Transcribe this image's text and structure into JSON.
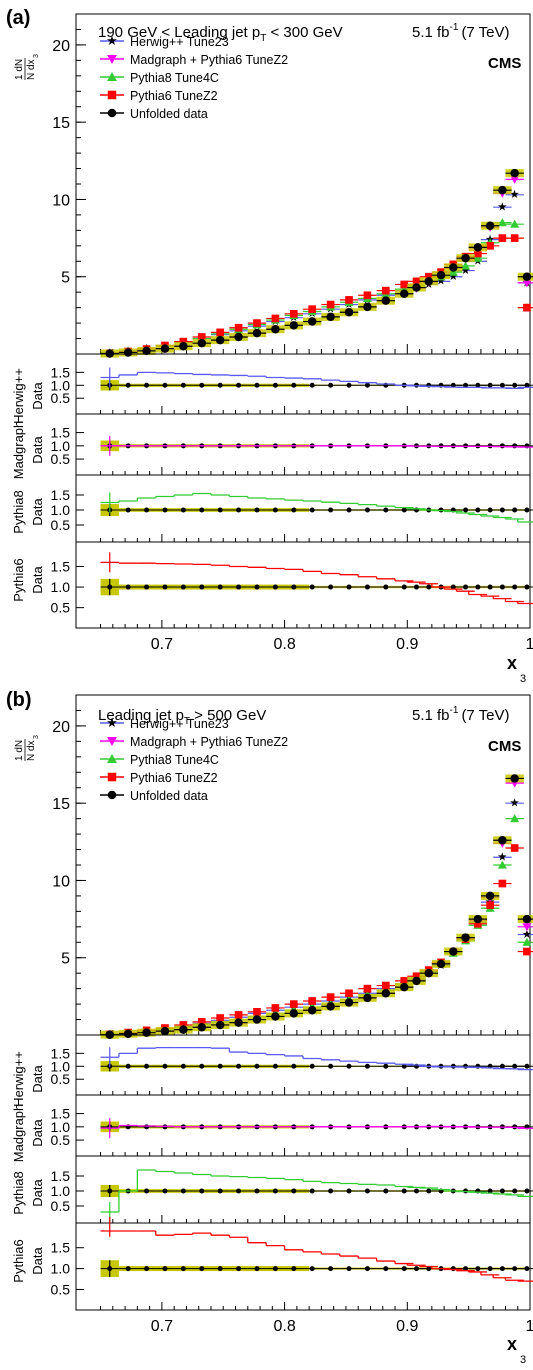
{
  "figure": {
    "x_axis_label": "x",
    "x_axis_sub": "3",
    "y_axis_label_num": "1 dN",
    "y_axis_label_den": "N dx",
    "y_axis_label_sub": "3",
    "lumi_text": "5.1 fb",
    "lumi_sup": "-1",
    "energy_text": "(7 TeV)",
    "experiment": "CMS",
    "ratio_denominator": "Data"
  },
  "legend": [
    {
      "name": "Herwig++ Tune23",
      "color": "#5a5af0",
      "marker": "star"
    },
    {
      "name": "Madgraph + Pythia6 TuneZ2",
      "color": "#ff00ff",
      "marker": "tri-down"
    },
    {
      "name": "Pythia8 Tune4C",
      "color": "#33cc33",
      "marker": "tri-up"
    },
    {
      "name": "Pythia6 TuneZ2",
      "color": "#ff0000",
      "marker": "square"
    },
    {
      "name": "Unfolded data",
      "color": "#000000",
      "marker": "circle"
    }
  ],
  "ratio_labels": [
    "Herwig++",
    "Madgraph",
    "Pythia8",
    "Pythia6"
  ],
  "uncertainty_band_color": "#c8c800",
  "chart_data": [
    {
      "type": "line",
      "panel_label": "(a)",
      "title": "190 GeV < Leading jet p",
      "title_sub": "T",
      "title_tail": " < 300 GeV",
      "xlabel": "x3",
      "ylabel": "1/N dN/dx3",
      "xlim": [
        0.63,
        1.0
      ],
      "ylim": [
        0,
        22
      ],
      "y_ticks": [
        "5",
        "10",
        "15",
        "20"
      ],
      "x_ticks": [
        "0.7",
        "0.8",
        "0.9",
        "1"
      ],
      "x": [
        0.6575,
        0.6725,
        0.6875,
        0.7025,
        0.7175,
        0.7325,
        0.7475,
        0.7625,
        0.7775,
        0.7925,
        0.8075,
        0.8225,
        0.8375,
        0.8525,
        0.8675,
        0.8825,
        0.8975,
        0.9075,
        0.9175,
        0.9275,
        0.9375,
        0.9475,
        0.9575,
        0.9675,
        0.9775,
        0.9875,
        0.9975
      ],
      "series": [
        {
          "name": "Unfolded data",
          "values": [
            0.03,
            0.1,
            0.2,
            0.35,
            0.5,
            0.7,
            0.9,
            1.1,
            1.35,
            1.6,
            1.85,
            2.1,
            2.4,
            2.7,
            3.05,
            3.45,
            3.9,
            4.3,
            4.7,
            5.1,
            5.6,
            6.2,
            6.9,
            8.3,
            10.6,
            11.7,
            5.0
          ]
        },
        {
          "name": "Herwig++ Tune23",
          "values": [
            0.05,
            0.2,
            0.35,
            0.5,
            0.75,
            1.0,
            1.25,
            1.5,
            1.8,
            2.1,
            2.35,
            2.6,
            2.9,
            3.2,
            3.5,
            3.8,
            4.1,
            4.3,
            4.5,
            4.7,
            5.0,
            5.4,
            6.0,
            7.4,
            9.5,
            10.3,
            4.6
          ]
        },
        {
          "name": "Madgraph + Pythia6 TuneZ2",
          "values": [
            0.03,
            0.1,
            0.2,
            0.35,
            0.5,
            0.7,
            0.9,
            1.1,
            1.35,
            1.6,
            1.85,
            2.1,
            2.4,
            2.7,
            3.05,
            3.45,
            3.9,
            4.25,
            4.65,
            5.05,
            5.55,
            6.1,
            6.8,
            8.2,
            10.4,
            11.3,
            4.6
          ]
        },
        {
          "name": "Pythia8 Tune4C",
          "values": [
            0.04,
            0.15,
            0.3,
            0.5,
            0.75,
            1.0,
            1.3,
            1.6,
            1.9,
            2.2,
            2.5,
            2.75,
            3.05,
            3.35,
            3.6,
            3.9,
            4.2,
            4.4,
            4.7,
            5.0,
            5.3,
            5.7,
            6.2,
            7.2,
            8.5,
            8.4,
            3.0
          ]
        },
        {
          "name": "Pythia6 TuneZ2",
          "values": [
            0.05,
            0.16,
            0.32,
            0.55,
            0.8,
            1.1,
            1.4,
            1.7,
            2.0,
            2.3,
            2.6,
            2.9,
            3.2,
            3.5,
            3.8,
            4.1,
            4.5,
            4.7,
            5.0,
            5.3,
            5.8,
            6.3,
            6.5,
            7.0,
            7.5,
            7.5,
            3.0
          ]
        }
      ],
      "ratio_panels": [
        {
          "ylabel": "Herwig++/Data",
          "ylim": [
            0.2,
            1.9
          ],
          "y_ticks": [
            "0.5",
            "1.0",
            "1.5"
          ],
          "values": [
            1.3,
            1.4,
            1.5,
            1.48,
            1.45,
            1.42,
            1.4,
            1.38,
            1.35,
            1.3,
            1.28,
            1.25,
            1.2,
            1.15,
            1.1,
            1.05,
            1.0,
            0.98,
            0.96,
            0.95,
            0.93,
            0.92,
            0.92,
            0.9,
            0.9,
            0.88,
            0.92
          ]
        },
        {
          "ylabel": "Madgraph/Data",
          "ylim": [
            0.2,
            1.9
          ],
          "y_ticks": [
            "0.5",
            "1.0",
            "1.5"
          ],
          "values": [
            1.0,
            1.0,
            1.0,
            1.0,
            1.0,
            1.0,
            1.0,
            1.0,
            1.0,
            1.0,
            1.0,
            1.0,
            1.0,
            1.0,
            1.0,
            1.0,
            1.0,
            0.99,
            0.99,
            0.98,
            0.98,
            0.98,
            0.98,
            0.98,
            0.97,
            0.96,
            0.95
          ]
        },
        {
          "ylabel": "Pythia8/Data",
          "ylim": [
            0.2,
            1.9
          ],
          "y_ticks": [
            "0.5",
            "1.0",
            "1.5"
          ],
          "values": [
            1.25,
            1.3,
            1.4,
            1.45,
            1.5,
            1.55,
            1.5,
            1.45,
            1.4,
            1.37,
            1.33,
            1.3,
            1.26,
            1.22,
            1.18,
            1.13,
            1.08,
            1.04,
            1.0,
            0.98,
            0.95,
            0.9,
            0.85,
            0.8,
            0.75,
            0.7,
            0.6
          ]
        },
        {
          "ylabel": "Pythia6/Data",
          "ylim": [
            0.2,
            1.9
          ],
          "y_ticks": [
            "0.5",
            "1.0",
            "1.5"
          ],
          "values": [
            1.6,
            1.58,
            1.58,
            1.57,
            1.56,
            1.55,
            1.53,
            1.5,
            1.48,
            1.45,
            1.43,
            1.38,
            1.33,
            1.3,
            1.25,
            1.2,
            1.15,
            1.12,
            1.08,
            1.0,
            0.95,
            0.9,
            0.82,
            0.78,
            0.72,
            0.65,
            0.6
          ]
        }
      ]
    },
    {
      "type": "line",
      "panel_label": "(b)",
      "title": "Leading jet p",
      "title_sub": "T",
      "title_tail": " > 500 GeV",
      "xlabel": "x3",
      "ylabel": "1/N dN/dx3",
      "xlim": [
        0.63,
        1.0
      ],
      "ylim": [
        0,
        22
      ],
      "y_ticks": [
        "5",
        "10",
        "15",
        "20"
      ],
      "x_ticks": [
        "0.7",
        "0.8",
        "0.9",
        "1"
      ],
      "x": [
        0.6575,
        0.6725,
        0.6875,
        0.7025,
        0.7175,
        0.7325,
        0.7475,
        0.7625,
        0.7775,
        0.7925,
        0.8075,
        0.8225,
        0.8375,
        0.8525,
        0.8675,
        0.8825,
        0.8975,
        0.9075,
        0.9175,
        0.9275,
        0.9375,
        0.9475,
        0.9575,
        0.9675,
        0.9775,
        0.9875,
        0.9975
      ],
      "series": [
        {
          "name": "Unfolded data",
          "values": [
            0.02,
            0.08,
            0.15,
            0.25,
            0.35,
            0.5,
            0.65,
            0.8,
            1.0,
            1.2,
            1.4,
            1.6,
            1.85,
            2.1,
            2.4,
            2.7,
            3.1,
            3.5,
            4.0,
            4.6,
            5.4,
            6.3,
            7.5,
            9.0,
            12.6,
            16.6,
            7.5
          ]
        },
        {
          "name": "Herwig++ Tune23",
          "values": [
            0.03,
            0.12,
            0.25,
            0.4,
            0.55,
            0.75,
            0.95,
            1.15,
            1.4,
            1.6,
            1.8,
            2.0,
            2.2,
            2.45,
            2.7,
            3.0,
            3.3,
            3.6,
            4.0,
            4.5,
            5.3,
            6.1,
            7.3,
            8.6,
            11.5,
            15.0,
            6.5
          ]
        },
        {
          "name": "Madgraph + Pythia6 TuneZ2",
          "values": [
            0.02,
            0.08,
            0.15,
            0.25,
            0.35,
            0.5,
            0.65,
            0.8,
            1.0,
            1.2,
            1.4,
            1.6,
            1.85,
            2.1,
            2.4,
            2.7,
            3.1,
            3.5,
            4.0,
            4.6,
            5.4,
            6.3,
            7.4,
            8.9,
            12.4,
            16.3,
            7.0
          ]
        },
        {
          "name": "Pythia8 Tune4C",
          "values": [
            0.01,
            0.1,
            0.25,
            0.38,
            0.5,
            0.68,
            0.85,
            1.0,
            1.2,
            1.4,
            1.6,
            1.8,
            2.0,
            2.3,
            2.6,
            2.9,
            3.3,
            3.7,
            4.1,
            4.6,
            5.3,
            6.1,
            7.1,
            8.2,
            11.0,
            14.0,
            6.0
          ]
        },
        {
          "name": "Pythia6 TuneZ2",
          "values": [
            0.05,
            0.16,
            0.3,
            0.45,
            0.65,
            0.85,
            1.1,
            1.3,
            1.5,
            1.75,
            2.0,
            2.2,
            2.45,
            2.7,
            3.0,
            3.2,
            3.5,
            3.8,
            4.2,
            4.7,
            5.4,
            6.2,
            7.2,
            8.4,
            9.8,
            12.1,
            5.4
          ]
        }
      ],
      "ratio_panels": [
        {
          "ylabel": "Herwig++/Data",
          "ylim": [
            0.2,
            1.9
          ],
          "y_ticks": [
            "0.5",
            "1.0",
            "1.5"
          ],
          "values": [
            1.35,
            1.5,
            1.7,
            1.72,
            1.72,
            1.72,
            1.7,
            1.55,
            1.5,
            1.45,
            1.4,
            1.3,
            1.25,
            1.2,
            1.15,
            1.12,
            1.08,
            1.05,
            1.0,
            0.98,
            0.98,
            0.97,
            0.96,
            0.94,
            0.91,
            0.9,
            0.87
          ]
        },
        {
          "ylabel": "Madgraph/Data",
          "ylim": [
            0.2,
            1.9
          ],
          "y_ticks": [
            "0.5",
            "1.0",
            "1.5"
          ],
          "values": [
            0.95,
            1.05,
            1.03,
            1.02,
            1.0,
            1.0,
            1.0,
            1.0,
            1.0,
            1.0,
            1.0,
            1.0,
            1.0,
            1.0,
            1.0,
            1.0,
            1.0,
            1.0,
            1.01,
            1.01,
            1.0,
            1.0,
            0.99,
            0.99,
            0.99,
            0.98,
            0.94
          ]
        },
        {
          "ylabel": "Pythia8/Data",
          "ylim": [
            0.2,
            1.9
          ],
          "y_ticks": [
            "0.5",
            "1.0",
            "1.5"
          ],
          "values": [
            0.3,
            1.0,
            1.7,
            1.65,
            1.6,
            1.55,
            1.5,
            1.48,
            1.45,
            1.42,
            1.38,
            1.32,
            1.28,
            1.25,
            1.22,
            1.2,
            1.15,
            1.12,
            1.1,
            1.05,
            1.0,
            0.98,
            0.96,
            0.93,
            0.9,
            0.87,
            0.82
          ]
        },
        {
          "ylabel": "Pythia6/Data",
          "ylim": [
            0.2,
            1.9
          ],
          "y_ticks": [
            "0.5",
            "1.0",
            "1.5"
          ],
          "values": [
            2.0,
            1.95,
            1.9,
            1.8,
            1.82,
            1.85,
            1.8,
            1.75,
            1.62,
            1.55,
            1.45,
            1.4,
            1.35,
            1.3,
            1.25,
            1.18,
            1.12,
            1.08,
            1.05,
            1.0,
            0.98,
            0.95,
            0.92,
            0.85,
            0.78,
            0.72,
            0.7
          ]
        }
      ]
    }
  ]
}
